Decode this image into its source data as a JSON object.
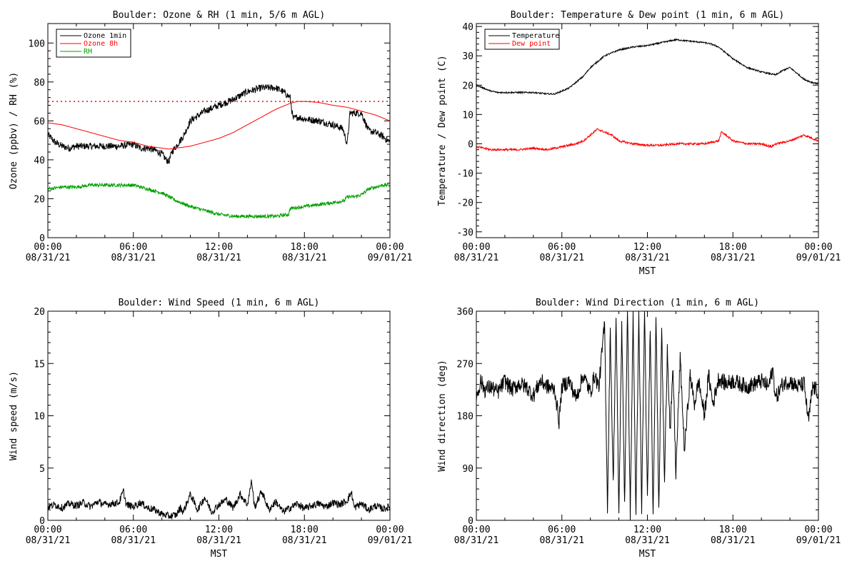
{
  "chart_data": [
    {
      "type": "line",
      "title": "Boulder: Ozone & RH (1 min, 5/6 m AGL)",
      "xlabel": "",
      "ylabel": "Ozone (ppbv) / RH (%)",
      "xlim": [
        0,
        24
      ],
      "ylim": [
        0,
        110
      ],
      "yticks": [
        0,
        20,
        40,
        60,
        80,
        100
      ],
      "x_tick_labels": [
        {
          "time": "00:00",
          "date": "08/31/21"
        },
        {
          "time": "06:00",
          "date": "08/31/21"
        },
        {
          "time": "12:00",
          "date": "08/31/21"
        },
        {
          "time": "18:00",
          "date": "08/31/21"
        },
        {
          "time": "00:00",
          "date": "09/01/21"
        }
      ],
      "legend": "top-left",
      "hline": {
        "y": 70,
        "color": "#ff0000",
        "style": "dotted"
      },
      "series": [
        {
          "name": "Ozone 1min",
          "color": "#000000",
          "x": [
            0,
            0.5,
            1,
            1.5,
            2,
            3,
            4,
            5,
            6,
            6.5,
            7,
            7.5,
            8,
            8.3,
            8.5,
            8.7,
            9,
            9.5,
            10,
            11,
            12,
            13,
            14,
            15,
            16,
            16.5,
            17,
            17.2,
            17.5,
            18,
            19,
            20,
            20.7,
            21,
            21.2,
            21.5,
            22,
            22.5,
            23,
            23.5,
            24
          ],
          "y": [
            53,
            49,
            47,
            46,
            47,
            47,
            47,
            47,
            48,
            46,
            46,
            45,
            43,
            40,
            39,
            44,
            47,
            52,
            60,
            65,
            68,
            71,
            75,
            77,
            77,
            75,
            72,
            61,
            62,
            61,
            60,
            58,
            56,
            48,
            64,
            64,
            64,
            55,
            54,
            52,
            49
          ]
        },
        {
          "name": "Ozone 8h",
          "color": "#ff0000",
          "x": [
            0,
            1,
            2,
            3,
            4,
            5,
            6,
            7,
            8,
            8.5,
            9,
            10,
            11,
            12,
            13,
            14,
            15,
            16,
            17,
            17.5,
            18,
            19,
            20,
            21,
            22,
            23,
            24
          ],
          "y": [
            59,
            58,
            56,
            54,
            52,
            50,
            49,
            47,
            46,
            45.5,
            46,
            47,
            49,
            51,
            54,
            58,
            62,
            66,
            69,
            70,
            70,
            69.5,
            68,
            67,
            65,
            63,
            60
          ]
        },
        {
          "name": "RH",
          "color": "#00a000",
          "x": [
            0,
            1,
            2,
            3,
            4,
            5,
            6,
            6.5,
            7,
            8,
            8.5,
            9,
            10,
            11,
            12,
            13,
            14,
            15,
            16,
            16.9,
            17,
            18,
            19,
            20,
            20.8,
            21,
            21.5,
            22,
            22.5,
            23,
            23.5,
            24
          ],
          "y": [
            25,
            26,
            26,
            27,
            27,
            27,
            27,
            26,
            25,
            23,
            21,
            19,
            16,
            14,
            12,
            11,
            11,
            11,
            11,
            12,
            15,
            16,
            17,
            18,
            19,
            21,
            21,
            22,
            25,
            26,
            27,
            27
          ]
        }
      ]
    },
    {
      "type": "line",
      "title": "Boulder: Temperature & Dew point (1 min, 6 m AGL)",
      "xlabel": "MST",
      "ylabel": "Temperature / Dew point (C)",
      "xlim": [
        0,
        24
      ],
      "ylim": [
        -32,
        41
      ],
      "yticks": [
        -30,
        -20,
        -10,
        0,
        10,
        20,
        30,
        40
      ],
      "x_tick_labels": [
        {
          "time": "00:00",
          "date": "08/31/21"
        },
        {
          "time": "06:00",
          "date": "08/31/21"
        },
        {
          "time": "12:00",
          "date": "08/31/21"
        },
        {
          "time": "18:00",
          "date": "08/31/21"
        },
        {
          "time": "00:00",
          "date": "09/01/21"
        }
      ],
      "legend": "top-left",
      "series": [
        {
          "name": "Temperature",
          "color": "#000000",
          "x": [
            0,
            0.5,
            1,
            1.5,
            2,
            3,
            4,
            5,
            5.5,
            6,
            6.5,
            7,
            7.5,
            8,
            9,
            10,
            11,
            12,
            13,
            14,
            15,
            16,
            16.5,
            17,
            17.5,
            18,
            19,
            20,
            21,
            21.5,
            22,
            22.5,
            23,
            23.5,
            24
          ],
          "y": [
            20,
            19,
            18,
            17.5,
            17.5,
            17.5,
            17.5,
            17,
            17,
            18,
            19,
            21,
            23,
            26,
            30,
            32,
            33,
            33.5,
            34.5,
            35.5,
            35,
            34.5,
            34,
            33,
            31,
            29,
            26,
            24.5,
            23.5,
            25,
            26,
            24,
            22,
            21,
            20.5
          ]
        },
        {
          "name": "Dew point",
          "color": "#ff0000",
          "x": [
            0,
            1,
            2,
            3,
            4,
            5,
            6,
            7,
            7.5,
            8,
            8.5,
            9,
            9.5,
            10,
            11,
            12,
            13,
            14,
            15,
            16,
            17,
            17.2,
            17.5,
            18,
            19,
            20,
            20.7,
            21,
            22,
            22.5,
            23,
            23.5,
            24
          ],
          "y": [
            -1,
            -2,
            -2,
            -2,
            -1.5,
            -2,
            -1,
            0,
            1,
            3,
            5,
            4,
            3,
            1,
            0,
            -0.5,
            -0.5,
            0,
            0,
            0,
            1,
            4,
            3,
            1,
            0,
            0,
            -1,
            0,
            1,
            2,
            3,
            2,
            1
          ]
        }
      ]
    },
    {
      "type": "line",
      "title": "Boulder: Wind Speed (1 min, 6 m AGL)",
      "xlabel": "MST",
      "ylabel": "Wind speed (m/s)",
      "xlim": [
        0,
        24
      ],
      "ylim": [
        0,
        20
      ],
      "yticks": [
        0,
        5,
        10,
        15,
        20
      ],
      "x_tick_labels": [
        {
          "time": "00:00",
          "date": "08/31/21"
        },
        {
          "time": "06:00",
          "date": "08/31/21"
        },
        {
          "time": "12:00",
          "date": "08/31/21"
        },
        {
          "time": "18:00",
          "date": "08/31/21"
        },
        {
          "time": "00:00",
          "date": "09/01/21"
        }
      ],
      "series": [
        {
          "color": "#000000",
          "x": [
            0,
            0.5,
            1,
            1.5,
            2,
            2.5,
            3,
            3.5,
            4,
            4.5,
            5,
            5.3,
            5.5,
            6,
            6.5,
            7,
            7.5,
            8,
            8.5,
            9,
            9.3,
            9.5,
            10,
            10.5,
            11,
            11.5,
            12,
            12.5,
            13,
            13.5,
            14,
            14.3,
            14.5,
            15,
            15.5,
            16,
            16.5,
            17,
            17.5,
            18,
            18.5,
            19,
            19.5,
            20,
            20.5,
            21,
            21.3,
            21.5,
            22,
            22.5,
            23,
            23.5,
            24
          ],
          "y": [
            1.3,
            1.5,
            1.2,
            1.6,
            1.4,
            1.7,
            1.3,
            1.8,
            1.5,
            1.6,
            1.7,
            2.8,
            1.5,
            1.3,
            1.7,
            1.2,
            1.0,
            0.6,
            0.4,
            0.5,
            1.2,
            0.8,
            2.5,
            1.0,
            2.2,
            0.8,
            1.5,
            2.0,
            1.2,
            2.5,
            1.5,
            3.8,
            1.2,
            2.8,
            1.0,
            1.8,
            0.8,
            1.2,
            1.6,
            1.1,
            1.4,
            1.6,
            1.3,
            1.7,
            1.5,
            1.9,
            2.7,
            1.2,
            1.6,
            1.0,
            1.4,
            1.1,
            1.3
          ]
        }
      ]
    },
    {
      "type": "line",
      "title": "Boulder: Wind Direction (1 min, 6 m AGL)",
      "xlabel": "MST",
      "ylabel": "Wind direction (deg)",
      "xlim": [
        0,
        24
      ],
      "ylim": [
        0,
        360
      ],
      "yticks": [
        0,
        90,
        180,
        270,
        360
      ],
      "x_tick_labels": [
        {
          "time": "00:00",
          "date": "08/31/21"
        },
        {
          "time": "06:00",
          "date": "08/31/21"
        },
        {
          "time": "12:00",
          "date": "08/31/21"
        },
        {
          "time": "18:00",
          "date": "08/31/21"
        },
        {
          "time": "00:00",
          "date": "09/01/21"
        }
      ],
      "series": [
        {
          "color": "#000000",
          "x": [
            0,
            0.3,
            0.6,
            1,
            1.5,
            2,
            2.5,
            3,
            3.5,
            4,
            4.5,
            5,
            5.5,
            5.8,
            6,
            6.5,
            7,
            7.5,
            8,
            8.3,
            8.6,
            9,
            9.2,
            9.4,
            9.6,
            9.8,
            10,
            10.2,
            10.4,
            10.6,
            10.8,
            11,
            11.2,
            11.4,
            11.6,
            11.8,
            12,
            12.2,
            12.4,
            12.6,
            12.8,
            13,
            13.2,
            13.4,
            13.6,
            13.8,
            14,
            14.3,
            14.6,
            15,
            15.3,
            15.6,
            16,
            16.3,
            16.6,
            17,
            17.5,
            18,
            18.5,
            19,
            19.5,
            20,
            20.5,
            20.8,
            21,
            21.5,
            22,
            22.5,
            23,
            23.3,
            23.6,
            24
          ],
          "y": [
            210,
            240,
            225,
            230,
            220,
            240,
            225,
            235,
            230,
            215,
            240,
            230,
            225,
            170,
            230,
            240,
            210,
            250,
            220,
            250,
            230,
            340,
            20,
            330,
            60,
            350,
            10,
            340,
            30,
            360,
            5,
            355,
            10,
            350,
            20,
            360,
            30,
            340,
            10,
            355,
            20,
            330,
            60,
            300,
            150,
            260,
            80,
            280,
            120,
            250,
            200,
            240,
            180,
            250,
            200,
            245,
            235,
            240,
            235,
            230,
            235,
            240,
            230,
            260,
            210,
            235,
            240,
            230,
            235,
            170,
            230,
            220
          ]
        }
      ]
    }
  ]
}
